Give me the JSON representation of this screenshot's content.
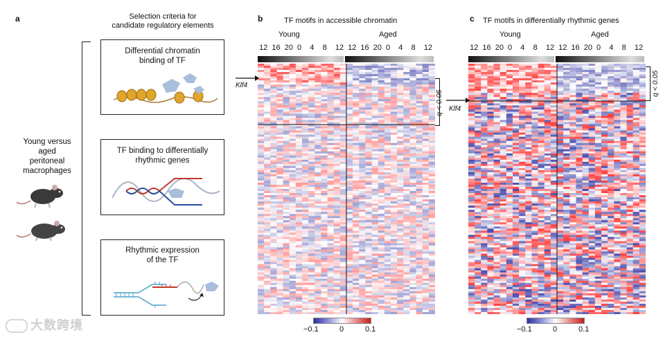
{
  "panel_a": {
    "letter": "a",
    "header_line1": "Selection criteria for",
    "header_line2": "candidate regulatory elements",
    "left_label_lines": [
      "Young versus",
      "aged",
      "peritoneal",
      "macrophages"
    ],
    "boxes": [
      {
        "line1": "Differential chromatin",
        "line2": "binding of TF"
      },
      {
        "line1": "TF binding to differentially",
        "line2": "rhythmic genes"
      },
      {
        "line1": "Rhythmic expression",
        "line2": "of the TF"
      }
    ]
  },
  "panel_b": {
    "letter": "b",
    "title": "TF motifs in accessible chromatin",
    "young_label": "Young",
    "aged_label": "Aged",
    "time_ticks": [
      "12",
      "16",
      "20",
      "0",
      "4",
      "8",
      "12",
      "12",
      "16",
      "20",
      "0",
      "4",
      "8",
      "12"
    ],
    "arrow_label": "Klf4",
    "q_label": "q < 0.05",
    "legend": {
      "min": "−0.1",
      "mid": "0",
      "max": "0.1"
    }
  },
  "panel_c": {
    "letter": "c",
    "title": "TF motifs in differentially rhythmic genes",
    "young_label": "Young",
    "aged_label": "Aged",
    "time_ticks": [
      "12",
      "16",
      "20",
      "0",
      "4",
      "8",
      "12",
      "12",
      "16",
      "20",
      "0",
      "4",
      "8",
      "12"
    ],
    "arrow_label": "Klf4",
    "q_label": "q < 0.05",
    "legend": {
      "min": "−0.1",
      "mid": "0",
      "max": "0.1"
    }
  },
  "watermark": "大数跨境",
  "colors": {
    "pos": "#c81e1e",
    "neg": "#2c2fa0",
    "neutral": "#ffffff"
  }
}
